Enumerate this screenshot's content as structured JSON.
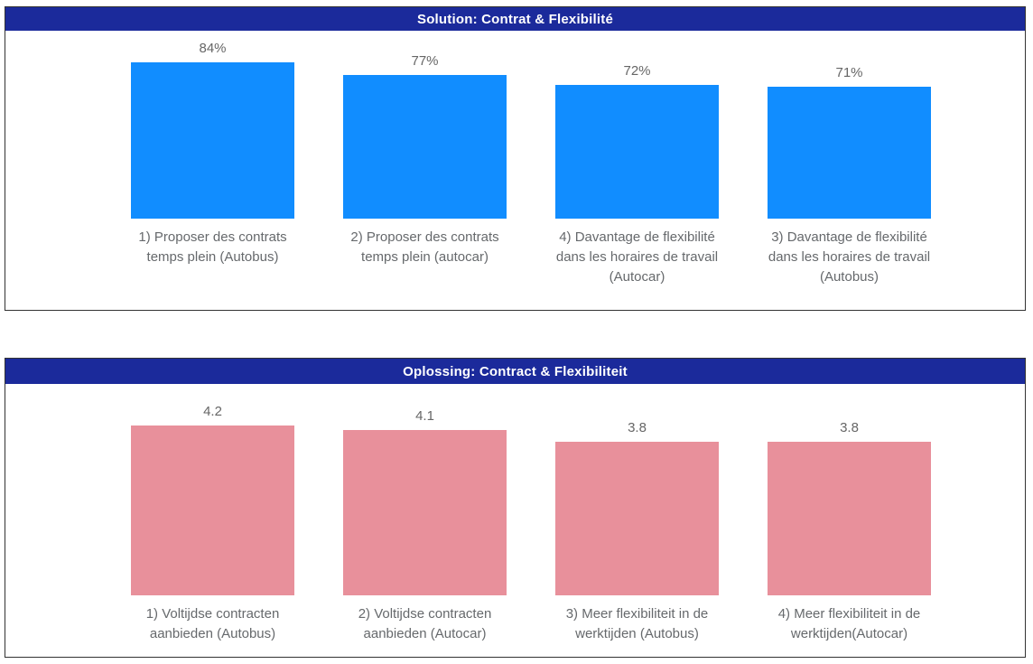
{
  "colors": {
    "header_background": "#1B2A9B",
    "header_text": "#FFFFFF",
    "bar_blue": "#118DFF",
    "bar_pink": "#E8909B",
    "label_gray": "#66696C",
    "panel_border": "#333333"
  },
  "chart_data": [
    {
      "type": "bar",
      "title": "Solution: Contrat & Flexibilité",
      "categories": [
        "1) Proposer des contrats temps plein (Autobus)",
        "2) Proposer des contrats temps plein (autocar)",
        "4) Davantage de flexibilité dans les horaires de travail (Autocar)",
        "3) Davantage de flexibilité dans les horaires de travail (Autobus)"
      ],
      "category_display": [
        "1) Proposer des contrats\ntemps plein (Autobus)",
        "2) Proposer des contrats\ntemps plein (autocar)",
        "4) Davantage de flexibilité\ndans les horaires de travail\n(Autocar)",
        "3) Davantage de flexibilité\ndans les horaires de travail\n(Autobus)"
      ],
      "values": [
        84,
        77,
        72,
        71
      ],
      "value_labels": [
        "84%",
        "77%",
        "72%",
        "71%"
      ],
      "xlabel": "",
      "ylabel": "",
      "ylim": [
        0,
        100
      ],
      "bar_color": "#118DFF",
      "grid": false,
      "legend_position": "none"
    },
    {
      "type": "bar",
      "title": "Oplossing: Contract & Flexibiliteit",
      "categories": [
        "1) Voltijdse contracten aanbieden (Autobus)",
        "2) Voltijdse contracten aanbieden (Autocar)",
        "3) Meer flexibiliteit in de werktijden (Autobus)",
        "4) Meer flexibiliteit in de werktijden(Autocar)"
      ],
      "category_display": [
        "1) Voltijdse contracten\naanbieden (Autobus)",
        "2) Voltijdse contracten\naanbieden (Autocar)",
        "3) Meer flexibiliteit in de\nwerktijden (Autobus)",
        "4) Meer flexibiliteit in de\nwerktijden(Autocar)"
      ],
      "values": [
        4.2,
        4.1,
        3.8,
        3.8
      ],
      "value_labels": [
        "4.2",
        "4.1",
        "3.8",
        "3.8"
      ],
      "xlabel": "",
      "ylabel": "",
      "ylim": [
        0,
        4.5
      ],
      "bar_color": "#E8909B",
      "grid": false,
      "legend_position": "none"
    }
  ]
}
